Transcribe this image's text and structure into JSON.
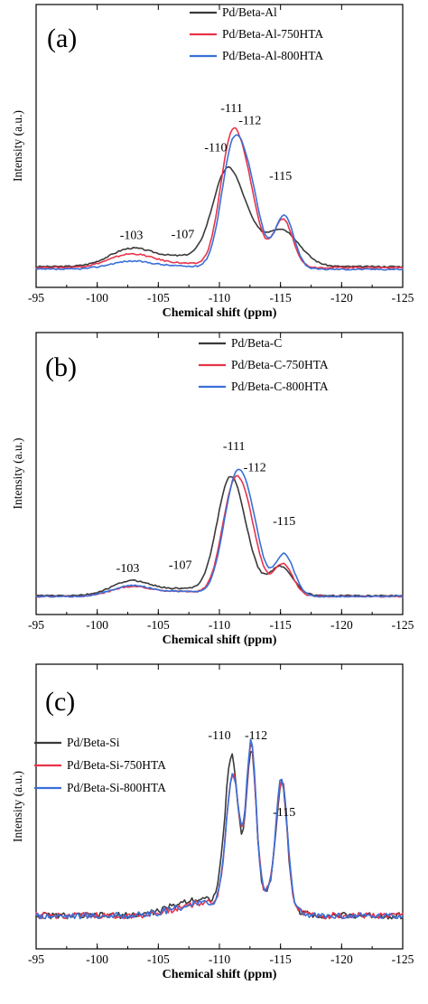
{
  "chart_data": [
    {
      "type": "line",
      "panel_label": "(a)",
      "xlabel": "Chemical shift (ppm)",
      "ylabel": "Intensity (a.u.)",
      "xlim": [
        -95,
        -125
      ],
      "xticks": [
        "-95",
        "-100",
        "-105",
        "-110",
        "-115",
        "-120",
        "-125"
      ],
      "legend_position": "top-right",
      "annotations": [
        {
          "text": "-103",
          "x": -102.8,
          "y": 0.17
        },
        {
          "text": "-107",
          "x": -107.0,
          "y": 0.175
        },
        {
          "text": "-110",
          "x": -109.7,
          "y": 0.66
        },
        {
          "text": "-111",
          "x": -111.0,
          "y": 0.88
        },
        {
          "text": "-112",
          "x": -112.5,
          "y": 0.81
        },
        {
          "text": "-115",
          "x": -115.0,
          "y": 0.5
        }
      ],
      "series": [
        {
          "name": "Pd/Beta-Al",
          "color": "#3a3a3a",
          "peaks": [
            [
              -102.8,
              0.1,
              1.8
            ],
            [
              -107.0,
              0.05,
              1.8
            ],
            [
              -110.7,
              0.54,
              1.25
            ],
            [
              -112.5,
              0.06,
              0.8
            ],
            [
              -115.0,
              0.21,
              1.5
            ]
          ],
          "baseline": 0.015
        },
        {
          "name": "Pd/Beta-Al-750HTA",
          "color": "#e8344a",
          "peaks": [
            [
              -102.8,
              0.075,
              1.8
            ],
            [
              -107.0,
              0.02,
              1.8
            ],
            [
              -111.0,
              0.7,
              0.95
            ],
            [
              -112.5,
              0.3,
              0.85
            ],
            [
              -115.2,
              0.27,
              0.8
            ]
          ],
          "baseline": 0.01
        },
        {
          "name": "Pd/Beta-Al-800HTA",
          "color": "#3a6fd8",
          "peaks": [
            [
              -102.8,
              0.045,
              1.8
            ],
            [
              -107.0,
              0.015,
              1.8
            ],
            [
              -111.1,
              0.66,
              0.95
            ],
            [
              -112.6,
              0.34,
              0.85
            ],
            [
              -115.3,
              0.3,
              0.8
            ]
          ],
          "baseline": 0.0
        }
      ]
    },
    {
      "type": "line",
      "panel_label": "(b)",
      "xlabel": "Chemical shift (ppm)",
      "ylabel": "Intensity (a.u.)",
      "xlim": [
        -95,
        -125
      ],
      "xticks": [
        "-95",
        "-100",
        "-105",
        "-110",
        "-115",
        "-120",
        "-125"
      ],
      "legend_position": "top-right",
      "annotations": [
        {
          "text": "-103",
          "x": -102.5,
          "y": 0.15
        },
        {
          "text": "-107",
          "x": -106.8,
          "y": 0.17
        },
        {
          "text": "-111",
          "x": -111.2,
          "y": 0.9
        },
        {
          "text": "-112",
          "x": -112.9,
          "y": 0.77
        },
        {
          "text": "-115",
          "x": -115.3,
          "y": 0.44
        }
      ],
      "series": [
        {
          "name": "Pd/Beta-C",
          "color": "#3a3a3a",
          "peaks": [
            [
              -102.8,
              0.09,
              1.6
            ],
            [
              -107.0,
              0.04,
              1.8
            ],
            [
              -110.9,
              0.72,
              1.1
            ],
            [
              -112.5,
              0.08,
              0.8
            ],
            [
              -115.0,
              0.18,
              1.0
            ]
          ],
          "baseline": 0.005
        },
        {
          "name": "Pd/Beta-C-750HTA",
          "color": "#e8344a",
          "peaks": [
            [
              -102.8,
              0.06,
              1.6
            ],
            [
              -107.0,
              0.03,
              1.8
            ],
            [
              -111.2,
              0.66,
              1.0
            ],
            [
              -112.6,
              0.25,
              0.85
            ],
            [
              -115.2,
              0.2,
              0.8
            ]
          ],
          "baseline": 0.0
        },
        {
          "name": "Pd/Beta-C-800HTA",
          "color": "#3a6fd8",
          "peaks": [
            [
              -102.8,
              0.065,
              1.6
            ],
            [
              -107.0,
              0.03,
              1.8
            ],
            [
              -111.3,
              0.68,
              1.0
            ],
            [
              -112.7,
              0.3,
              0.85
            ],
            [
              -115.3,
              0.26,
              0.8
            ]
          ],
          "baseline": 0.0
        }
      ]
    },
    {
      "type": "line",
      "panel_label": "(c)",
      "xlabel": "Chemical shift (ppm)",
      "ylabel": "Intensity (a.u.)",
      "xlim": [
        -95,
        -125
      ],
      "xticks": [
        "-95",
        "-100",
        "-105",
        "-110",
        "-115",
        "-120",
        "-125"
      ],
      "legend_position": "middle-left",
      "annotations": [
        {
          "text": "-110",
          "x": -110.0,
          "y": 0.88
        },
        {
          "text": "-112",
          "x": -113.0,
          "y": 0.88
        },
        {
          "text": "-115",
          "x": -115.3,
          "y": 0.52
        }
      ],
      "series": [
        {
          "name": "Pd/Beta-Si",
          "color": "#3a3a3a",
          "peaks": [
            [
              -108.5,
              0.08,
              2.2
            ],
            [
              -111.0,
              0.7,
              0.55
            ],
            [
              -112.6,
              0.7,
              0.4
            ],
            [
              -115.1,
              0.55,
              0.45
            ],
            [
              -114.0,
              0.1,
              1.4
            ]
          ],
          "baseline": 0.05
        },
        {
          "name": "Pd/Beta-Si-750HTA",
          "color": "#e8344a",
          "peaks": [
            [
              -108.8,
              0.06,
              2.2
            ],
            [
              -111.1,
              0.62,
              0.55
            ],
            [
              -112.6,
              0.72,
              0.4
            ],
            [
              -115.1,
              0.57,
              0.45
            ],
            [
              -114.0,
              0.1,
              1.4
            ]
          ],
          "baseline": 0.05
        },
        {
          "name": "Pd/Beta-Si-800HTA",
          "color": "#3a6fd8",
          "peaks": [
            [
              -108.8,
              0.06,
              2.2
            ],
            [
              -111.1,
              0.62,
              0.55
            ],
            [
              -112.6,
              0.73,
              0.4
            ],
            [
              -115.1,
              0.58,
              0.45
            ],
            [
              -114.0,
              0.1,
              1.4
            ]
          ],
          "baseline": 0.05
        }
      ]
    }
  ]
}
